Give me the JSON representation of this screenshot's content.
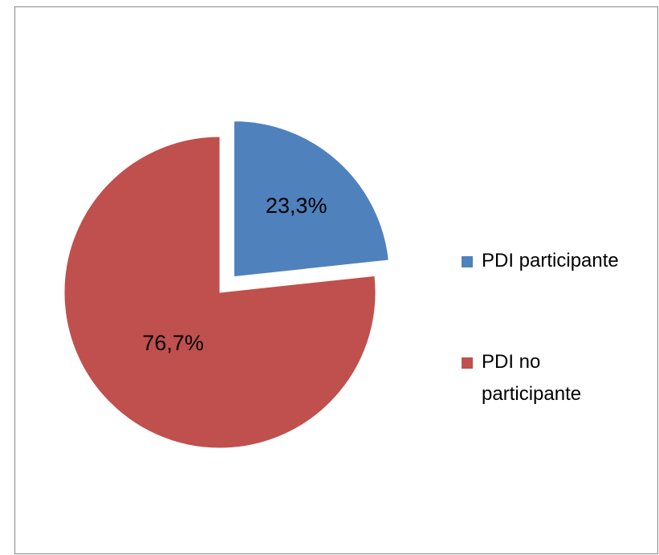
{
  "chart_data": {
    "type": "pie",
    "categories": [
      "PDI participante",
      "PDI no participante"
    ],
    "values": [
      23.3,
      76.7
    ],
    "value_labels": [
      "23,3%",
      "76,7%"
    ],
    "colors": [
      "#4f81bd",
      "#c0504d"
    ],
    "explode": [
      true,
      false
    ],
    "legend": "right"
  }
}
